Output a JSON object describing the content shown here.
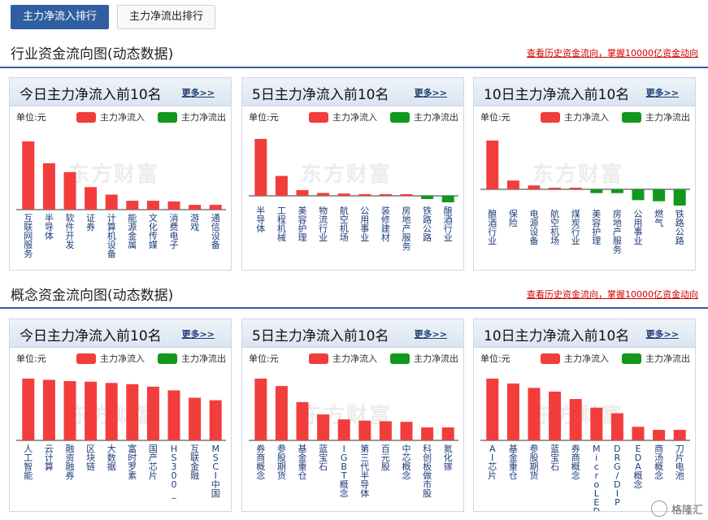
{
  "tabs": [
    {
      "label": "主力净流入排行",
      "active": true
    },
    {
      "label": "主力净流出排行",
      "active": false
    }
  ],
  "sections": [
    {
      "title": "行业资金流向图(动态数据)",
      "link": "查看历史资金流向，掌握10000亿资金动向",
      "panels": [
        {
          "title": "今日主力净流入前10名",
          "more": "更多>>",
          "unit": "单位:元",
          "legend_in": "主力净流入",
          "legend_out": "主力净流出",
          "watermark": "东方财富",
          "chart_data": {
            "type": "bar",
            "categories": [
              "互联网服务",
              "半导体",
              "软件开发",
              "证券",
              "计算机设备",
              "能源金属",
              "文化传媒",
              "消费电子",
              "游戏",
              "通信设备"
            ],
            "values": [
              100,
              68,
              55,
              33,
              22,
              13,
              13,
              12,
              7,
              7
            ]
          }
        },
        {
          "title": "5日主力净流入前10名",
          "more": "更多>>",
          "unit": "单位:元",
          "legend_in": "主力净流入",
          "legend_out": "主力净流出",
          "watermark": "东方财富",
          "chart_data": {
            "type": "bar",
            "categories": [
              "半导体",
              "工程机械",
              "美容护理",
              "物流行业",
              "航空机场",
              "公用事业",
              "装修建材",
              "房地产服务",
              "铁路公路",
              "酿酒行业"
            ],
            "values": [
              100,
              35,
              10,
              5,
              4,
              3,
              2,
              1,
              -1,
              -2
            ]
          }
        },
        {
          "title": "10日主力净流入前10名",
          "more": "更多>>",
          "unit": "单位:元",
          "legend_in": "主力净流入",
          "legend_out": "主力净流出",
          "watermark": "东方财富",
          "chart_data": {
            "type": "bar",
            "categories": [
              "酿酒行业",
              "保险",
              "电源设备",
              "航空机场",
              "煤炭行业",
              "美容护理",
              "房地产服务",
              "公用事业",
              "燃气",
              "铁路公路"
            ],
            "values": [
              100,
              18,
              8,
              2,
              1,
              -7,
              -7,
              -20,
              -22,
              -30
            ]
          }
        }
      ]
    },
    {
      "title": "概念资金流向图(动态数据)",
      "link": "查看历史资金流向，掌握10000亿资金动向",
      "panels": [
        {
          "title": "今日主力净流入前10名",
          "more": "更多>>",
          "unit": "单位:元",
          "legend_in": "主力净流入",
          "legend_out": "主力净流出",
          "watermark": "东方财富",
          "chart_data": {
            "type": "bar",
            "categories": [
              "人工智能",
              "云计算",
              "融资融券",
              "区块链",
              "大数据",
              "富时罗素",
              "国产芯片",
              "HS300_",
              "互联金融",
              "MSCI中国"
            ],
            "values": [
              100,
              98,
              96,
              95,
              93,
              91,
              87,
              81,
              69,
              65
            ]
          }
        },
        {
          "title": "5日主力净流入前10名",
          "more": "更多>>",
          "unit": "单位:元",
          "legend_in": "主力净流入",
          "legend_out": "主力净流出",
          "watermark": "东方财富",
          "chart_data": {
            "type": "bar",
            "categories": [
              "券商概念",
              "参股期货",
              "基金重仓",
              "蓝宝石",
              "IGBT概念",
              "第三代半导体",
              "百元股",
              "中芯概念",
              "科创板做市股",
              "氮化镓"
            ],
            "values": [
              100,
              88,
              62,
              42,
              34,
              32,
              31,
              30,
              21,
              21
            ]
          }
        },
        {
          "title": "10日主力净流入前10名",
          "more": "更多>>",
          "unit": "单位:元",
          "legend_in": "主力净流入",
          "legend_out": "主力净流出",
          "watermark": "东方财富",
          "chart_data": {
            "type": "bar",
            "categories": [
              "AI芯片",
              "基金重仓",
              "参股期货",
              "蓝宝石",
              "券商概念",
              "MicroLED",
              "DRG/DIP",
              "EDA概念",
              "商汤概念",
              "刀片电池"
            ],
            "values": [
              100,
              92,
              85,
              79,
              67,
              53,
              44,
              22,
              17,
              17
            ]
          }
        }
      ]
    }
  ],
  "colors": {
    "inflow": "#f23d3d",
    "outflow": "#11981d",
    "accent": "#2f5fa0",
    "link": "#d00000"
  },
  "corner_logo": "格隆汇"
}
